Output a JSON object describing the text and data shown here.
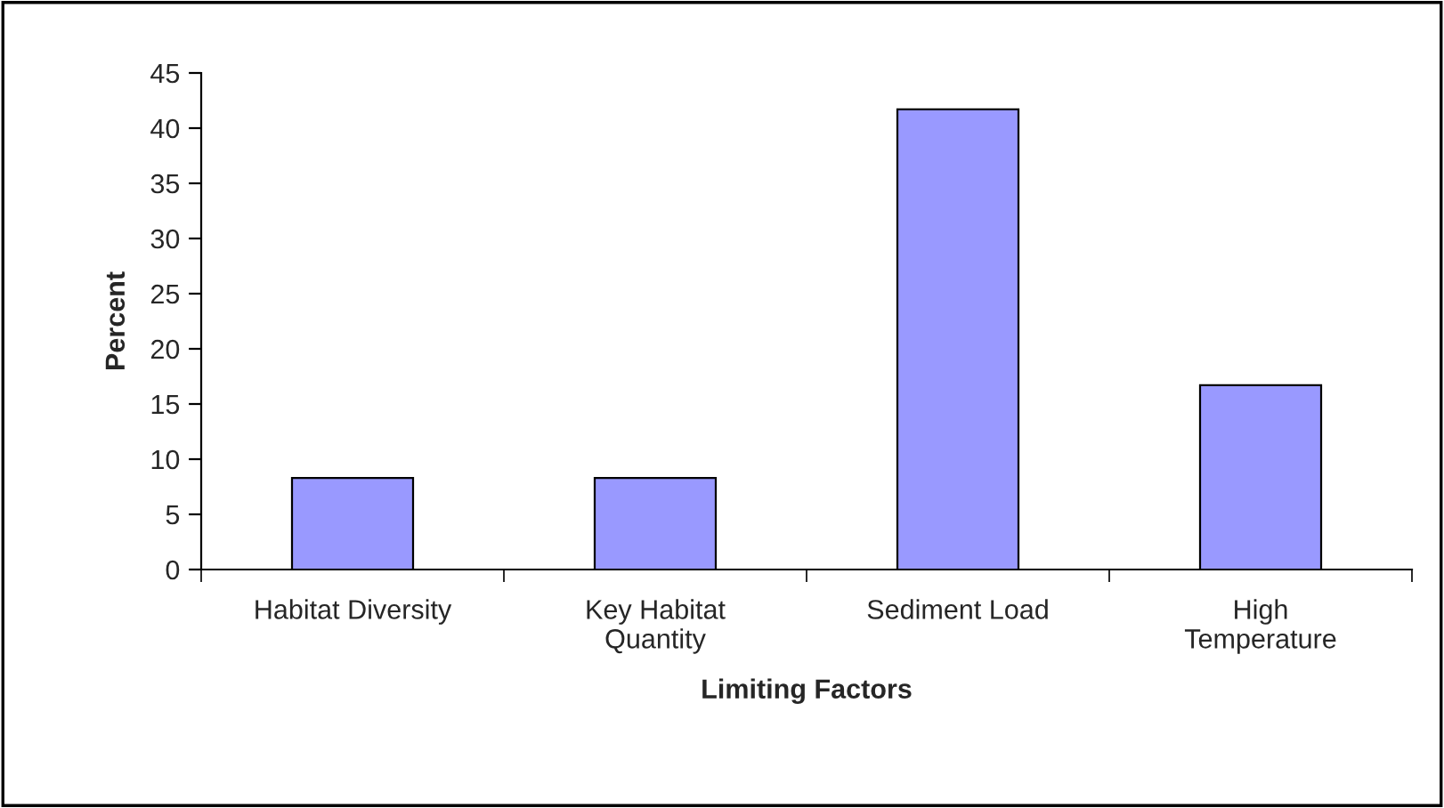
{
  "chart_data": {
    "type": "bar",
    "categories": [
      "Habitat Diversity",
      "Key Habitat\nQuantity",
      "Sediment Load",
      "High\nTemperature"
    ],
    "values": [
      8.3,
      8.3,
      41.7,
      16.7
    ],
    "color": "#9999ff",
    "xlabel": "Limiting Factors",
    "ylabel": "Percent",
    "ylim": [
      0,
      45
    ],
    "yticks": [
      0,
      5,
      10,
      15,
      20,
      25,
      30,
      35,
      40,
      45
    ],
    "grid": false,
    "legend": false
  }
}
